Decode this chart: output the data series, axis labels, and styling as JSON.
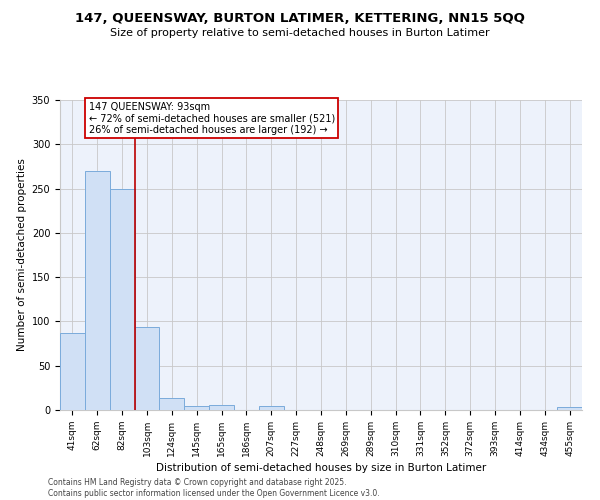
{
  "title_line1": "147, QUEENSWAY, BURTON LATIMER, KETTERING, NN15 5QQ",
  "title_line2": "Size of property relative to semi-detached houses in Burton Latimer",
  "xlabel": "Distribution of semi-detached houses by size in Burton Latimer",
  "ylabel": "Number of semi-detached properties",
  "categories": [
    "41sqm",
    "62sqm",
    "82sqm",
    "103sqm",
    "124sqm",
    "145sqm",
    "165sqm",
    "186sqm",
    "207sqm",
    "227sqm",
    "248sqm",
    "269sqm",
    "289sqm",
    "310sqm",
    "331sqm",
    "352sqm",
    "372sqm",
    "393sqm",
    "414sqm",
    "434sqm",
    "455sqm"
  ],
  "values": [
    87,
    270,
    250,
    94,
    13,
    5,
    6,
    0,
    4,
    0,
    0,
    0,
    0,
    0,
    0,
    0,
    0,
    0,
    0,
    0,
    3
  ],
  "bar_color": "#d0e0f5",
  "bar_edge_color": "#7aabdb",
  "ylim": [
    0,
    350
  ],
  "yticks": [
    0,
    50,
    100,
    150,
    200,
    250,
    300,
    350
  ],
  "annotation_text": "147 QUEENSWAY: 93sqm\n← 72% of semi-detached houses are smaller (521)\n26% of semi-detached houses are larger (192) →",
  "vline_x": 2.5,
  "vline_color": "#bb0000",
  "annotation_box_color": "#cc0000",
  "footnote": "Contains HM Land Registry data © Crown copyright and database right 2025.\nContains public sector information licensed under the Open Government Licence v3.0.",
  "background_color": "#edf2fb",
  "grid_color": "#c8c8c8",
  "title1_fontsize": 9.5,
  "title2_fontsize": 8.0,
  "ann_fontsize": 7.0,
  "tick_fontsize": 6.5,
  "ylabel_fontsize": 7.5,
  "xlabel_fontsize": 7.5,
  "footnote_fontsize": 5.5
}
